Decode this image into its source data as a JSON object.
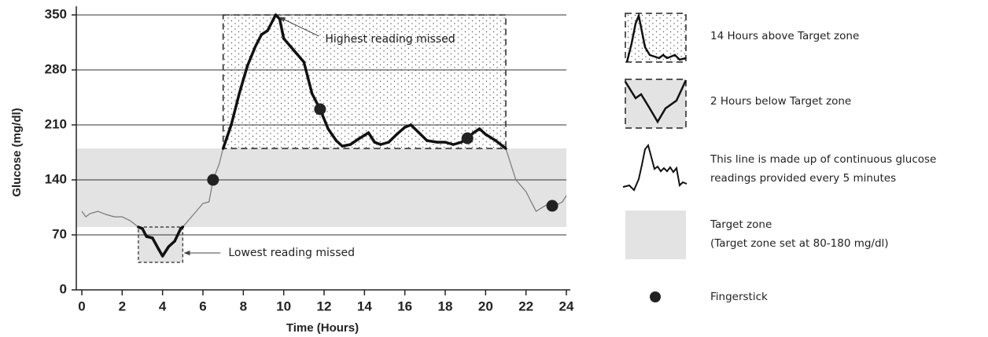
{
  "chart_data": {
    "type": "line",
    "x_label": "Time (Hours)",
    "y_label": "Glucose (mg/dl)",
    "xlim": [
      0,
      24
    ],
    "xticks": [
      0,
      2,
      4,
      6,
      8,
      10,
      12,
      14,
      16,
      18,
      20,
      22,
      24
    ],
    "ylim": [
      0,
      350
    ],
    "yticks": [
      0,
      70,
      140,
      210,
      280,
      350
    ],
    "grid": true,
    "target_zone": [
      80,
      180
    ],
    "series": [
      {
        "name": "This line is made up of continuous glucose readings provided every 5 minutes",
        "color": "#111111",
        "x": [
          0,
          0.2,
          0.4,
          0.8,
          1.2,
          1.6,
          2,
          2.4,
          2.8,
          3.0,
          3.2,
          3.5,
          3.8,
          4.0,
          4.3,
          4.6,
          4.9,
          5.0,
          5.5,
          6.0,
          6.3,
          6.5,
          6.8,
          7.0,
          7.4,
          7.8,
          8.2,
          8.6,
          8.9,
          9.2,
          9.6,
          9.8,
          10.0,
          10.5,
          11.0,
          11.4,
          11.8,
          12.2,
          12.6,
          12.9,
          13.3,
          13.7,
          14.2,
          14.5,
          14.8,
          15.2,
          15.6,
          16.0,
          16.3,
          16.7,
          17.1,
          17.6,
          18.0,
          18.4,
          18.8,
          19.1,
          19.4,
          19.7,
          20.0,
          20.5,
          21.0,
          21.5,
          22.0,
          22.5,
          23.0,
          23.5,
          23.8,
          24.0
        ],
        "values": [
          100,
          93,
          97,
          100,
          96,
          93,
          93,
          88,
          80,
          78,
          68,
          66,
          52,
          43,
          55,
          62,
          78,
          80,
          95,
          110,
          112,
          140,
          160,
          180,
          210,
          250,
          285,
          310,
          325,
          330,
          350,
          345,
          320,
          305,
          290,
          250,
          230,
          205,
          190,
          183,
          185,
          192,
          200,
          188,
          185,
          188,
          198,
          207,
          210,
          200,
          190,
          188,
          188,
          185,
          188,
          193,
          200,
          205,
          198,
          190,
          180,
          140,
          125,
          100,
          108,
          108,
          112,
          120
        ]
      }
    ],
    "fingersticks": {
      "name": "Fingerstick",
      "x": [
        6.5,
        11.8,
        19.1,
        23.3
      ],
      "values": [
        140,
        230,
        193,
        107
      ]
    },
    "annotations": [
      "Highest reading missed",
      "Lowest reading missed"
    ],
    "legend": [
      [
        "14 Hours above Target zone"
      ],
      [
        "2 Hours below Target zone"
      ],
      [
        "This line is made up of continuous glucose",
        "readings provided every 5 minutes"
      ],
      [
        "Target zone",
        "(Target zone set at 80-180 mg/dl)"
      ],
      [
        "Fingerstick"
      ]
    ]
  }
}
